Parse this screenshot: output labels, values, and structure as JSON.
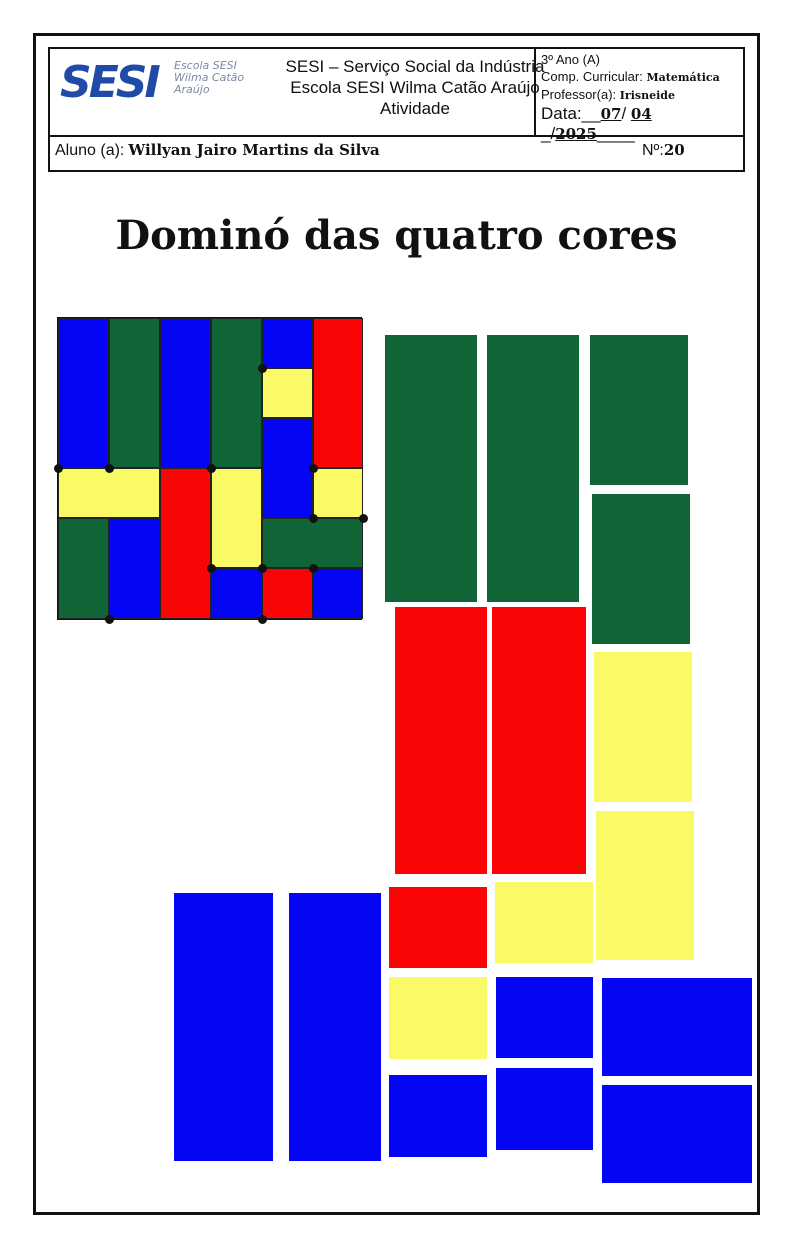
{
  "header": {
    "logo_text": "SESI",
    "logo_subtitle": "Escola SESI Wilma Catão Araújo",
    "line1": "SESI – Serviço Social da Indústria",
    "line2": "Escola SESI Wilma Catão Araújo",
    "line3": "Atividade",
    "grade": "3º Ano (A)",
    "comp_label": "Comp. Curricular:",
    "comp_value": "Matemática",
    "prof_label": "Professor(a):",
    "prof_value": "Irisneide",
    "date_label": "Data:",
    "date_day": "07",
    "date_month": "04",
    "date_year": "2025",
    "student_label": "Aluno (a):",
    "student_name": "Willyan Jairo Martins da Silva",
    "number_label": "Nº:",
    "number_value": "20"
  },
  "title": "Dominó das quatro cores",
  "colors": {
    "green": "#106536",
    "red": "#fa0505",
    "yellow": "#fafa66",
    "blue": "#0505f5"
  }
}
